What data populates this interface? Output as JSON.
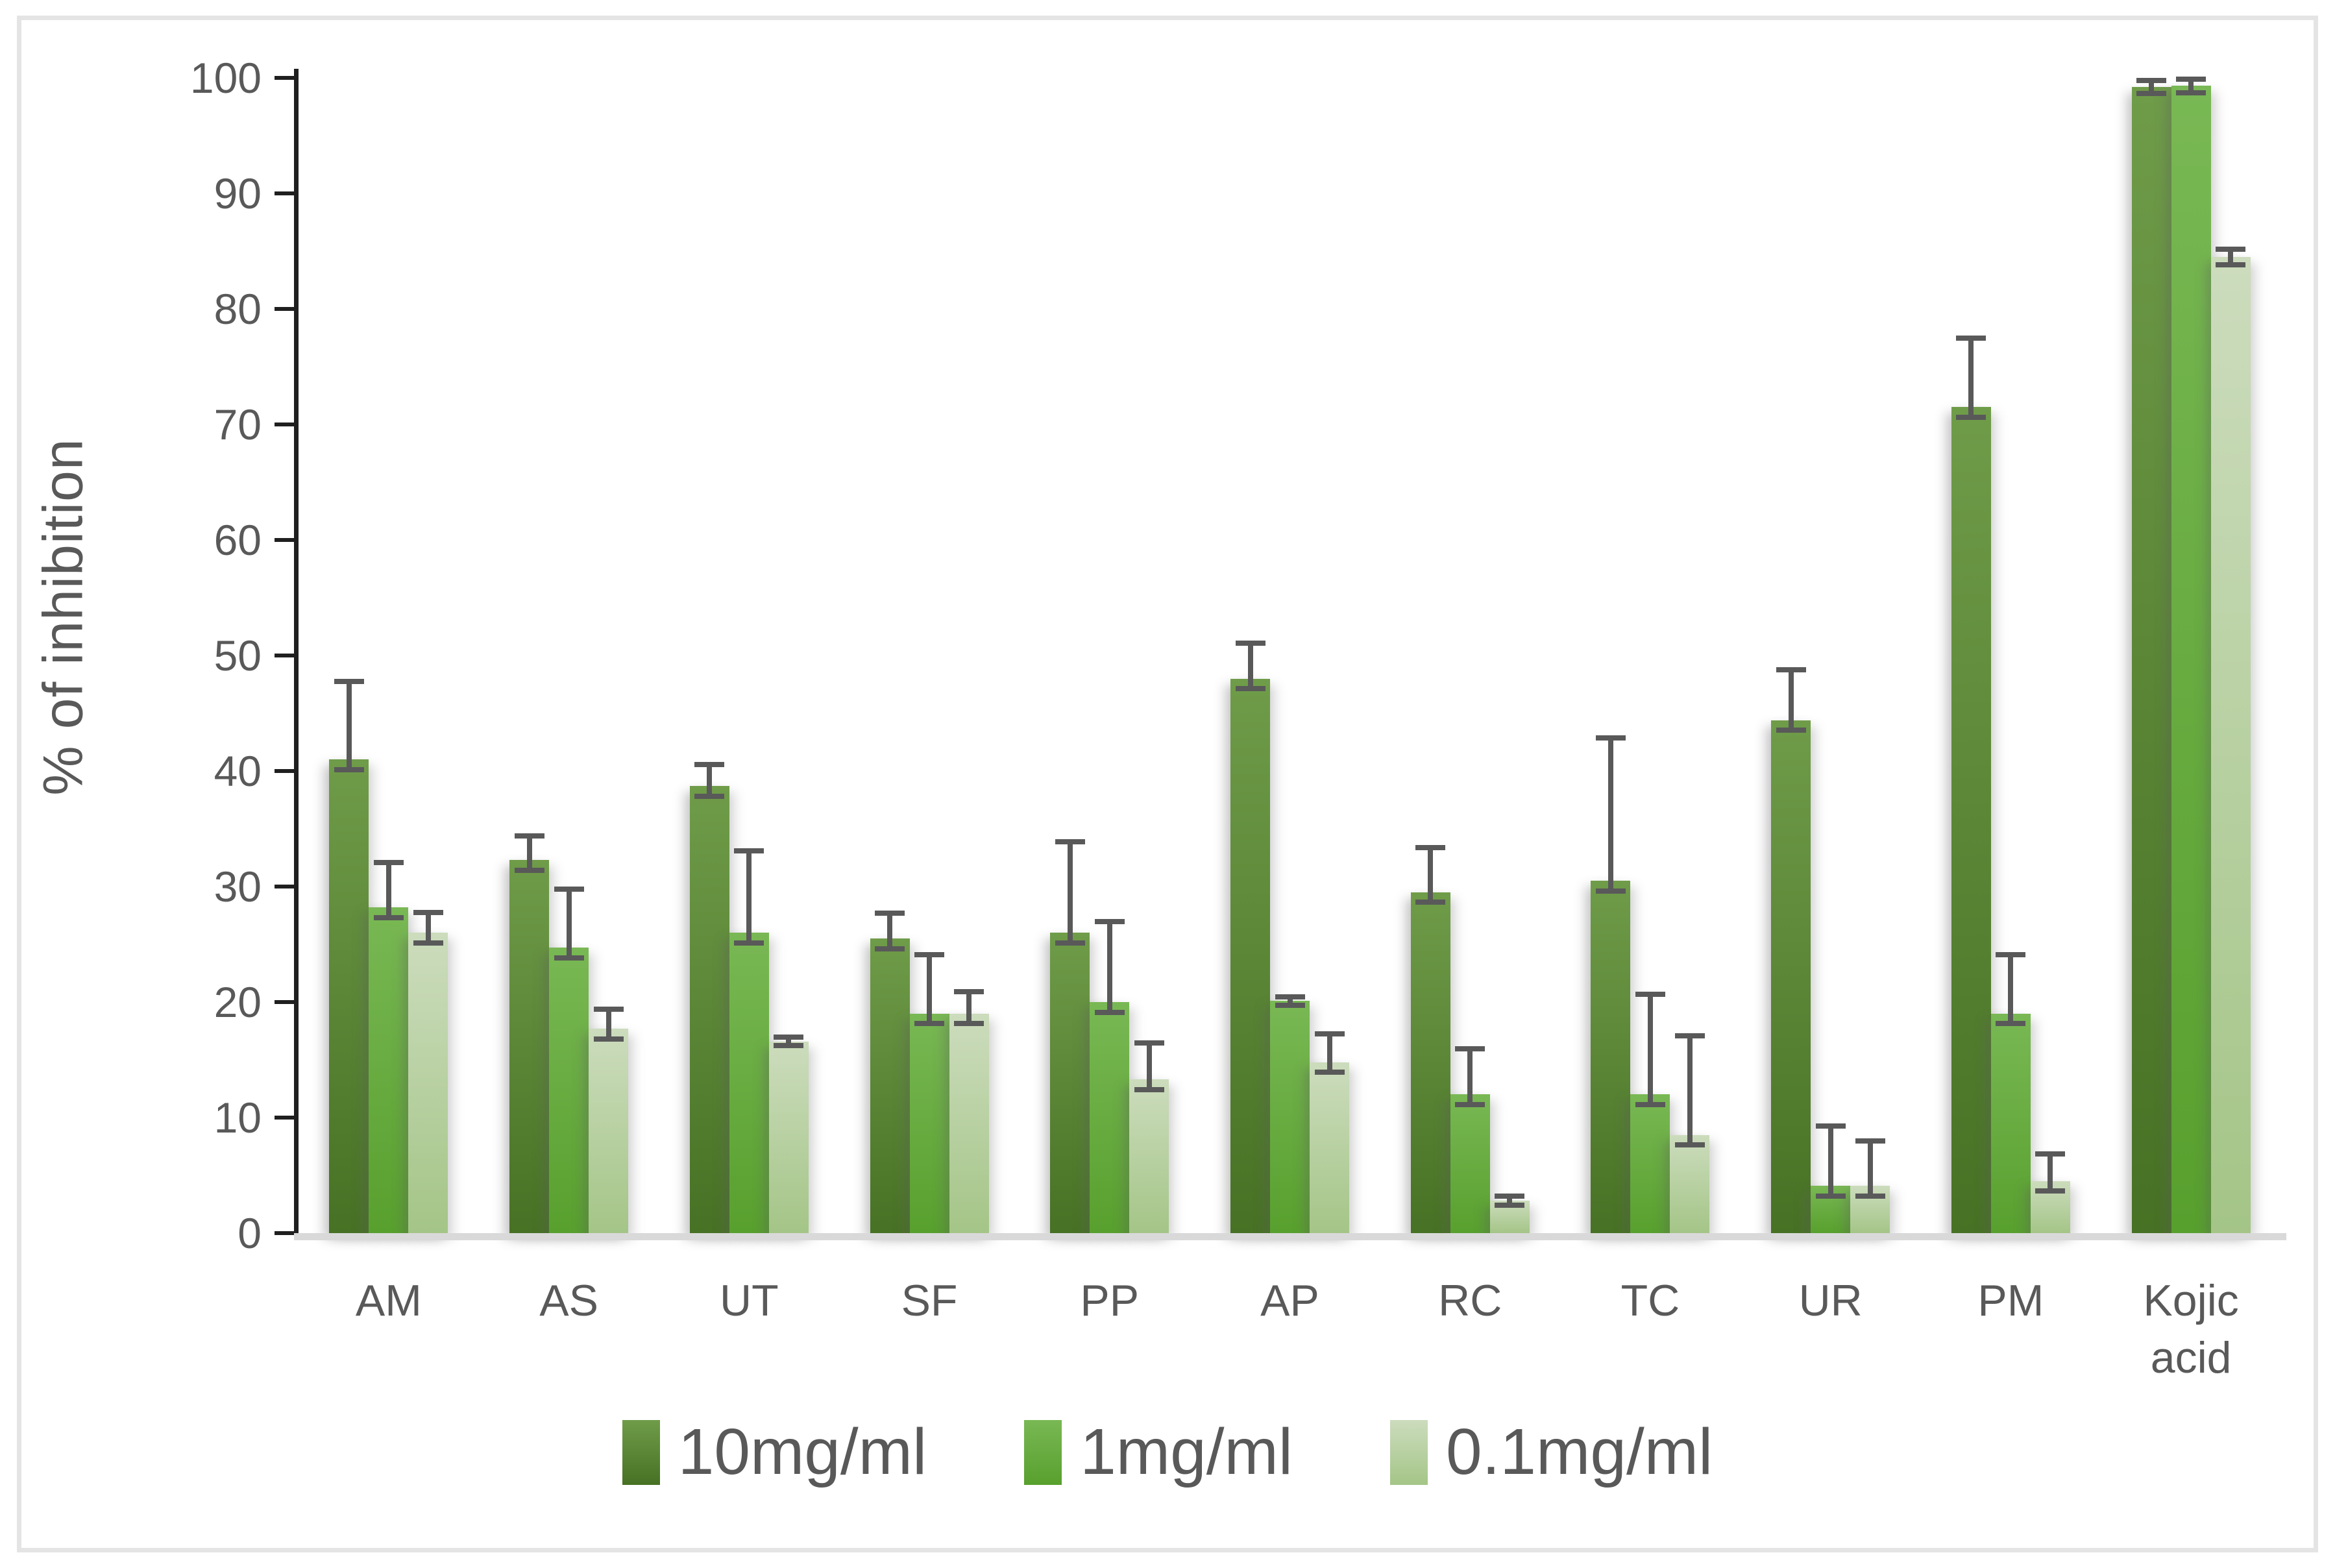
{
  "figure": {
    "background": "#ffffff",
    "border_color": "#e4e4e4",
    "text_color": "#595959",
    "axis_line_color": "#1f1f1f",
    "baseline_color": "#d9d9d9",
    "error_bar_color": "#595959"
  },
  "chart_data": {
    "type": "bar",
    "title": "",
    "xlabel": "",
    "ylabel": "% of inhibition",
    "ylim": [
      0,
      100
    ],
    "yticks": [
      0,
      10,
      20,
      30,
      40,
      50,
      60,
      70,
      80,
      90,
      100
    ],
    "grid": false,
    "legend_position": "bottom",
    "categories": [
      "AM",
      "AS",
      "UT",
      "SF",
      "PP",
      "AP",
      "RC",
      "TC",
      "UR",
      "PM",
      "Kojic acid"
    ],
    "series": [
      {
        "name": "10mg/ml",
        "color": "#4f7a2d",
        "values": [
          41,
          32.3,
          38.7,
          25.5,
          26,
          48,
          29.5,
          30.5,
          44.4,
          71.5,
          99.2
        ],
        "errors": [
          7,
          2.3,
          2.1,
          2.4,
          8.1,
          3.3,
          4.1,
          12.6,
          4.6,
          6.2,
          0.8
        ]
      },
      {
        "name": "1mg/ml",
        "color": "#66ab43",
        "values": [
          28.2,
          24.7,
          26,
          19,
          20,
          20.1,
          12,
          12,
          4.1,
          19,
          99.3
        ],
        "errors": [
          4.1,
          5.3,
          7.3,
          5.3,
          7.2,
          0.6,
          4.2,
          8.9,
          5.4,
          5.3,
          0.8
        ]
      },
      {
        "name": "0.1mg/ml",
        "color": "#b5cfa0",
        "values": [
          26,
          17.7,
          16.6,
          19,
          13.3,
          14.8,
          2.8,
          8.5,
          4.1,
          4.5,
          84.5
        ],
        "errors": [
          2,
          1.9,
          0.6,
          2.1,
          3.4,
          2.7,
          0.6,
          8.8,
          4.1,
          2.6,
          0.9
        ]
      }
    ]
  }
}
